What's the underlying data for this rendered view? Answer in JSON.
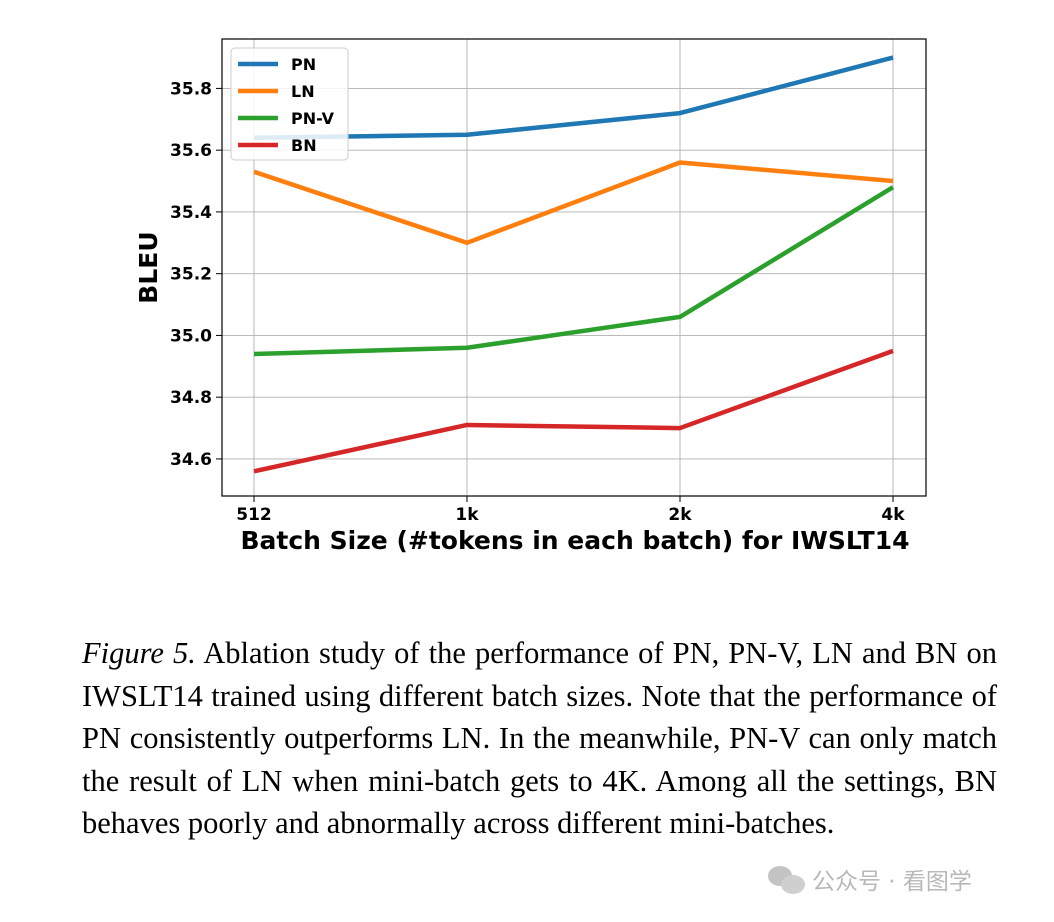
{
  "chart_data": {
    "type": "line",
    "xlabel": "Batch Size (#tokens in each batch) for IWSLT14",
    "ylabel": "BLEU",
    "categories": [
      "512",
      "1k",
      "2k",
      "4k"
    ],
    "yticks": [
      "34.6",
      "34.8",
      "35.0",
      "35.2",
      "35.4",
      "35.6",
      "35.8"
    ],
    "ylim": [
      34.48,
      35.96
    ],
    "grid": true,
    "legend_position": "top-left",
    "series": [
      {
        "name": "PN",
        "color": "#1f77b4",
        "values": [
          35.64,
          35.65,
          35.72,
          35.9
        ]
      },
      {
        "name": "LN",
        "color": "#ff7f0e",
        "values": [
          35.53,
          35.3,
          35.56,
          35.5
        ]
      },
      {
        "name": "PN-V",
        "color": "#2ca02c",
        "values": [
          34.94,
          34.96,
          35.06,
          35.48
        ]
      },
      {
        "name": "BN",
        "color": "#d62728",
        "values": [
          34.56,
          34.71,
          34.7,
          34.95
        ]
      }
    ]
  },
  "caption": {
    "label": "Figure 5.",
    "text": "Ablation study of the performance of PN, PN-V, LN and BN on IWSLT14 trained using different batch sizes.  Note that the performance of PN consistently outperforms LN. In the meanwhile, PN-V can only match the result of LN when mini-batch gets to 4K. Among all the settings, BN behaves poorly and abnormally across different mini-batches."
  },
  "watermark": {
    "text": "公众号 · 看图学",
    "icon": "wechat-icon"
  }
}
